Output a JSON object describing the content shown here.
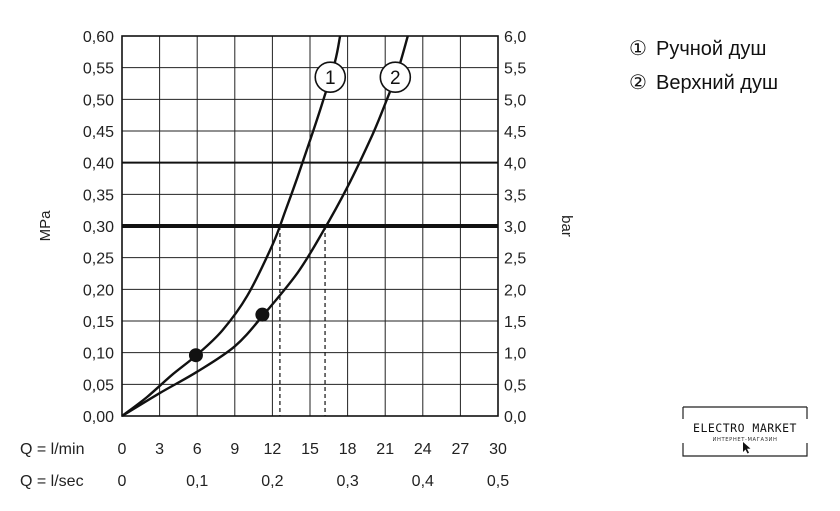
{
  "chart_data": {
    "type": "line",
    "left_axis": {
      "label": "MPa",
      "ylim": [
        0,
        0.6
      ],
      "ticks": [
        "0,00",
        "0,05",
        "0,10",
        "0,15",
        "0,20",
        "0,25",
        "0,30",
        "0,35",
        "0,40",
        "0,45",
        "0,50",
        "0,55",
        "0,60"
      ]
    },
    "right_axis": {
      "label": "bar",
      "ylim": [
        0,
        6
      ],
      "ticks": [
        "0,0",
        "0,5",
        "1,0",
        "1,5",
        "2,0",
        "2,5",
        "3,0",
        "3,5",
        "4,0",
        "4,5",
        "5,0",
        "5,5",
        "6,0"
      ]
    },
    "x_axis_primary": {
      "label": "Q = l/min",
      "xlim": [
        0,
        30
      ],
      "ticks": [
        "0",
        "3",
        "6",
        "9",
        "12",
        "15",
        "18",
        "21",
        "24",
        "27",
        "30"
      ]
    },
    "x_axis_secondary": {
      "label": "Q = l/sec",
      "ticks": [
        {
          "value": 0,
          "label": "0"
        },
        {
          "value": 0.1,
          "label": "0,1"
        },
        {
          "value": 0.2,
          "label": "0,2"
        },
        {
          "value": 0.3,
          "label": "0,3"
        },
        {
          "value": 0.4,
          "label": "0,4"
        },
        {
          "value": 0.5,
          "label": "0,5"
        }
      ]
    },
    "grid": true,
    "reference_lines": [
      {
        "y": 0.3,
        "style": "thick"
      },
      {
        "y": 0.4,
        "style": "medium"
      }
    ],
    "series": [
      {
        "id": "1",
        "marker_label": "1",
        "x": [
          0,
          2,
          4,
          6,
          8,
          10,
          12,
          13,
          14,
          15,
          16,
          17,
          17.4
        ],
        "y": [
          0,
          0.03,
          0.065,
          0.097,
          0.135,
          0.19,
          0.27,
          0.322,
          0.377,
          0.435,
          0.495,
          0.56,
          0.6
        ],
        "marker_point": {
          "x": 5.9,
          "y": 0.096
        },
        "dashed_drop_x": 12.6
      },
      {
        "id": "2",
        "marker_label": "2",
        "x": [
          0,
          3,
          6,
          9,
          11.3,
          14,
          16,
          18,
          20,
          21,
          22,
          22.8
        ],
        "y": [
          0,
          0.036,
          0.07,
          0.11,
          0.16,
          0.226,
          0.29,
          0.362,
          0.445,
          0.493,
          0.545,
          0.6
        ],
        "marker_point": {
          "x": 11.2,
          "y": 0.16
        },
        "dashed_drop_x": 16.2
      }
    ],
    "legend": {
      "position": "right",
      "items": [
        {
          "marker": "①",
          "label": "Ручной душ"
        },
        {
          "marker": "②",
          "label": "Верхний душ"
        }
      ]
    }
  },
  "logo": {
    "main": "ELECTRO MARKET",
    "sub": "ИНТЕРНЕТ-МАГАЗИН"
  }
}
